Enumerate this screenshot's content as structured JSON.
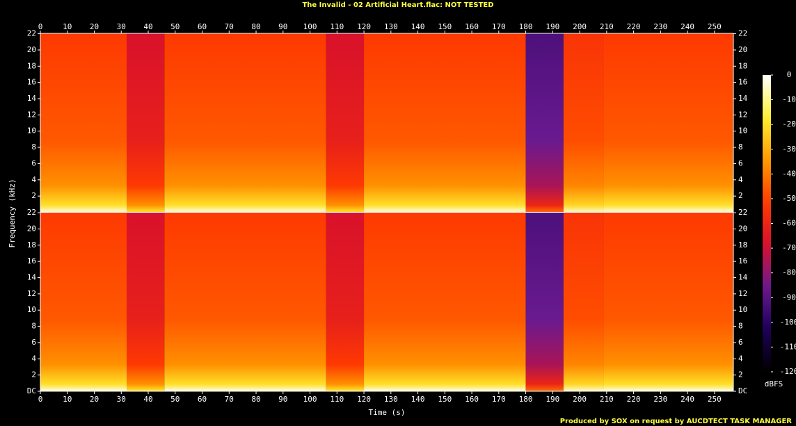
{
  "chart_data": {
    "type": "spectrogram",
    "title": "The Invalid - 02 Artificial Heart.flac: NOT TESTED",
    "xlabel": "Time (s)",
    "ylabel": "Frequency (kHz)",
    "xlim": [
      0,
      257
    ],
    "xticks": [
      0,
      10,
      20,
      30,
      40,
      50,
      60,
      70,
      80,
      90,
      100,
      110,
      120,
      130,
      140,
      150,
      160,
      170,
      180,
      190,
      200,
      210,
      220,
      230,
      240,
      250
    ],
    "ylim": [
      0,
      22.05
    ],
    "yticks": [
      {
        "value": 0,
        "label": "DC"
      },
      2,
      4,
      6,
      8,
      10,
      12,
      14,
      16,
      18,
      20,
      22
    ],
    "channels": 2,
    "zlabel": "dBFS",
    "zlim": [
      -120,
      0
    ],
    "zticks": [
      0,
      -10,
      -20,
      -30,
      -40,
      -50,
      -60,
      -70,
      -80,
      -90,
      -100,
      -110,
      -120
    ],
    "colormap": [
      "#000000",
      "#1c0058",
      "#6a1a90",
      "#d8102c",
      "#ff3a00",
      "#ff9a00",
      "#ffee30",
      "#ffffff"
    ],
    "segments": [
      {
        "x": [
          0,
          32
        ],
        "db": -52
      },
      {
        "x": [
          32,
          46
        ],
        "db": -68
      },
      {
        "x": [
          46,
          106
        ],
        "db": -52
      },
      {
        "x": [
          106,
          120
        ],
        "db": -68
      },
      {
        "x": [
          120,
          180
        ],
        "db": -52
      },
      {
        "x": [
          180,
          194
        ],
        "db": -92
      },
      {
        "x": [
          194,
          209
        ],
        "db": -54
      },
      {
        "x": [
          209,
          257
        ],
        "db": -52
      }
    ],
    "footer": "Produced by SOX on request by AUCDTECT TASK MANAGER"
  }
}
